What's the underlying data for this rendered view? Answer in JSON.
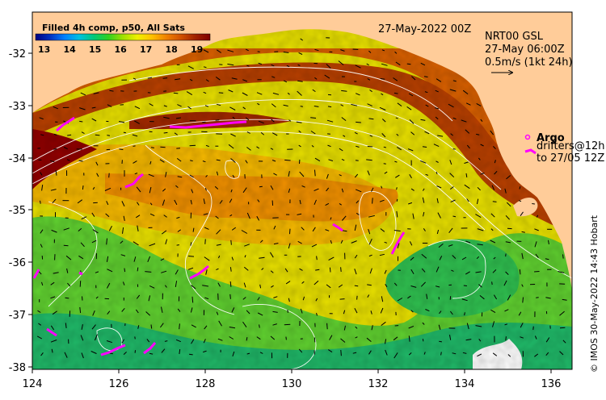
{
  "map": {
    "legend": {
      "title": "Filled 4h comp, p50, All Sats",
      "ticks": [
        "13",
        "14",
        "15",
        "16",
        "17",
        "18",
        "19"
      ],
      "colors": [
        "#000080",
        "#0030c0",
        "#0080ff",
        "#00c0e0",
        "#00c878",
        "#30d020",
        "#a0e000",
        "#f0f000",
        "#ffc000",
        "#f08000",
        "#d05000",
        "#a02000",
        "#800000"
      ]
    },
    "date_label": "27-May-2022 00Z",
    "gsl": {
      "line1": "NRT00 GSL",
      "line2": "27-May 06:00Z",
      "line3": "0.5m/s (1kt 24h)"
    },
    "argo": {
      "label": "Argo",
      "drifters_line1": "drifters@12h",
      "drifters_line2": "to 27/05 12Z"
    },
    "credit": "© IMOS 30-May-2022 14:43 Hobart",
    "x_ticks": [
      "124",
      "126",
      "128",
      "130",
      "132",
      "134",
      "136"
    ],
    "y_ticks": [
      "-32",
      "-33",
      "-34",
      "-35",
      "-36",
      "-37",
      "-38"
    ],
    "colors": {
      "land": "#ffcc99",
      "argo": "#ff00ff",
      "contour": "#ffffff",
      "warm": "#b83000",
      "hot": "#900000"
    }
  }
}
